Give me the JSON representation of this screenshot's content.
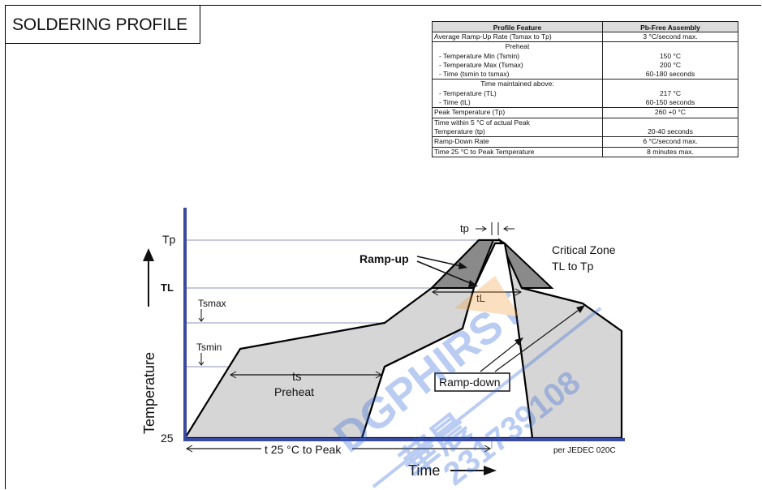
{
  "title": "SOLDERING PROFILE",
  "table": {
    "header": {
      "feature": "Profile Feature",
      "value": "Pb-Free Assembly"
    },
    "rows": [
      {
        "feature": [
          "Average Ramp-Up Rate (Tsmax to Tp)"
        ],
        "value": [
          "3 °C/second max."
        ]
      },
      {
        "feature": [
          "Preheat",
          "- Temperature Min (Tsmin)",
          "- Temperature Max (Tsmax)",
          "- Time (tsmin to tsmax)"
        ],
        "value": [
          "",
          "150 °C",
          "200 °C",
          "60-180 seconds"
        ]
      },
      {
        "feature": [
          "Time maintained above:",
          "- Temperature (TL)",
          "- Time (tL)"
        ],
        "value": [
          "",
          "217 °C",
          "60-150 seconds"
        ]
      },
      {
        "feature": [
          "Peak Temperature (Tp)"
        ],
        "value": [
          "260 +0 °C"
        ]
      },
      {
        "feature": [
          "Time within 5 °C of actual Peak",
          "Temperature (tp)"
        ],
        "value": [
          "",
          "20-40 seconds"
        ]
      },
      {
        "feature": [
          "Ramp-Down Rate"
        ],
        "value": [
          "6 °C/second max."
        ]
      },
      {
        "feature": [
          "Time 25 °C to Peak Temperature"
        ],
        "value": [
          "8 minutes max."
        ]
      }
    ]
  },
  "diagram": {
    "y_axis_label": "Temperature",
    "x_axis_label": "Time",
    "levels": {
      "tp": "Tp",
      "tl": "TL",
      "tsmax": "Tsmax",
      "tsmin": "Tsmin",
      "ambient": "25"
    },
    "labels": {
      "tp_time": "tp",
      "ramp_up": "Ramp-up",
      "critical_zone_1": "Critical Zone",
      "critical_zone_2": "TL to Tp",
      "tl_time": "tL",
      "ts": "ts",
      "preheat": "Preheat",
      "ramp_down": "Ramp-down",
      "t25_to_peak": "t 25 °C to Peak",
      "jedec": "per JEDEC 020C"
    },
    "watermark": [
      "DGPHIRST",
      "華晨",
      "231739108"
    ],
    "colors": {
      "axis": "#3a4aa0",
      "profile_fill": "#d6d6d6",
      "critical_fill": "#8a8a8a",
      "guide": "#8e94b8",
      "watermark_blue": "#2d64d6",
      "watermark_orange": "#f0a040"
    }
  }
}
